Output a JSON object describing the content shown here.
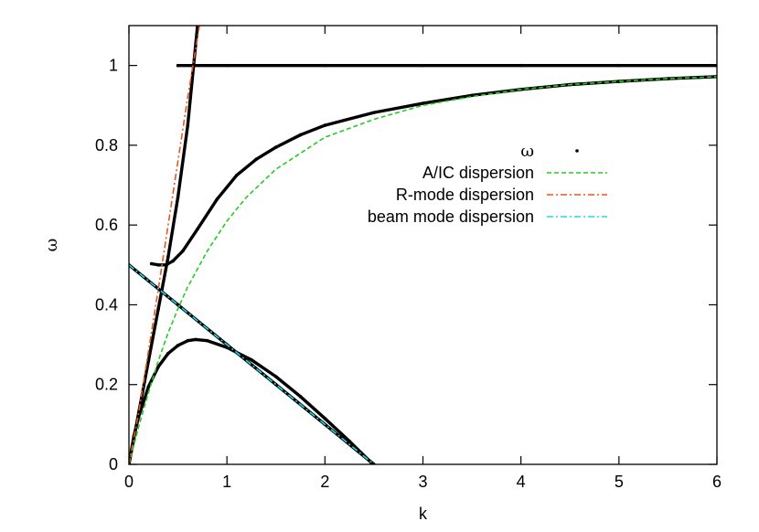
{
  "chart_data": {
    "type": "scatter",
    "xlabel": "k",
    "ylabel": "ω",
    "xlim": [
      0,
      6
    ],
    "ylim": [
      0,
      1.1
    ],
    "xticks": [
      "0",
      "1",
      "2",
      "3",
      "4",
      "5",
      "6"
    ],
    "yticks": [
      "0",
      "0.2",
      "0.4",
      "0.6",
      "0.8",
      "1"
    ],
    "grid": false,
    "legend_position": "top-right",
    "legend": [
      {
        "label": "ω",
        "style": "points",
        "color": "#000000"
      },
      {
        "label": "A/IC dispersion",
        "style": "dashed",
        "color": "#22cc22"
      },
      {
        "label": "R-mode dispersion",
        "style": "dash-dot",
        "color": "#e8561c"
      },
      {
        "label": "beam mode dispersion",
        "style": "dash-dot",
        "color": "#22d8e8"
      }
    ],
    "series": [
      {
        "name": "ω",
        "style": "points",
        "branches": [
          {
            "x": [
              0.5,
              1,
              2,
              3,
              4,
              5,
              6
            ],
            "y": [
              1.0,
              1.0,
              1.0,
              1.0,
              1.0,
              1.0,
              1.0
            ]
          },
          {
            "x": [
              0.23,
              0.3,
              0.38,
              0.45,
              0.55,
              0.7,
              0.9,
              1.1,
              1.3,
              1.5,
              1.75,
              2.0,
              2.5,
              3.0,
              3.5,
              4.0,
              4.5,
              5.0,
              5.5,
              6.0
            ],
            "y": [
              0.503,
              0.5,
              0.5,
              0.51,
              0.535,
              0.59,
              0.665,
              0.725,
              0.765,
              0.795,
              0.826,
              0.85,
              0.882,
              0.905,
              0.925,
              0.94,
              0.952,
              0.96,
              0.967,
              0.972
            ]
          },
          {
            "x": [
              0,
              0.05,
              0.1,
              0.2,
              0.3,
              0.4,
              0.5,
              0.6,
              0.7
            ],
            "y": [
              0,
              0.065,
              0.13,
              0.26,
              0.39,
              0.52,
              0.67,
              0.85,
              1.1
            ]
          },
          {
            "x": [
              0,
              0.05,
              0.1,
              0.2,
              0.3,
              0.4,
              0.5,
              0.6,
              0.68,
              0.8,
              1.0,
              1.25,
              1.5,
              1.75,
              2.0,
              2.25,
              2.47
            ],
            "y": [
              0,
              0.07,
              0.12,
              0.195,
              0.245,
              0.278,
              0.298,
              0.31,
              0.313,
              0.31,
              0.293,
              0.262,
              0.22,
              0.17,
              0.115,
              0.058,
              0.005
            ]
          },
          {
            "x": [
              0,
              0.5,
              1,
              1.5,
              2,
              2.5
            ],
            "y": [
              0.5,
              0.4,
              0.3,
              0.2,
              0.1,
              0.0
            ]
          }
        ]
      },
      {
        "name": "A/IC dispersion",
        "style": "dashed",
        "color": "#22cc22",
        "x": [
          0,
          0.1,
          0.2,
          0.3,
          0.4,
          0.5,
          0.6,
          0.8,
          1.0,
          1.2,
          1.5,
          2.0,
          2.5,
          3.0,
          3.5,
          4.0,
          4.5,
          5.0,
          5.5,
          6.0
        ],
        "y": [
          0,
          0.095,
          0.18,
          0.26,
          0.33,
          0.39,
          0.445,
          0.535,
          0.61,
          0.67,
          0.74,
          0.82,
          0.865,
          0.9,
          0.922,
          0.94,
          0.952,
          0.96,
          0.967,
          0.972
        ]
      },
      {
        "name": "R-mode dispersion",
        "style": "dash-dot",
        "color": "#e8561c",
        "x": [
          0,
          0.1,
          0.2,
          0.3,
          0.4,
          0.5,
          0.6,
          0.72
        ],
        "y": [
          0,
          0.13,
          0.285,
          0.44,
          0.6,
          0.76,
          0.92,
          1.1
        ]
      },
      {
        "name": "beam mode dispersion",
        "style": "dash-dot",
        "color": "#22d8e8",
        "x": [
          0,
          2.5
        ],
        "y": [
          0.5,
          0.0
        ]
      }
    ]
  }
}
